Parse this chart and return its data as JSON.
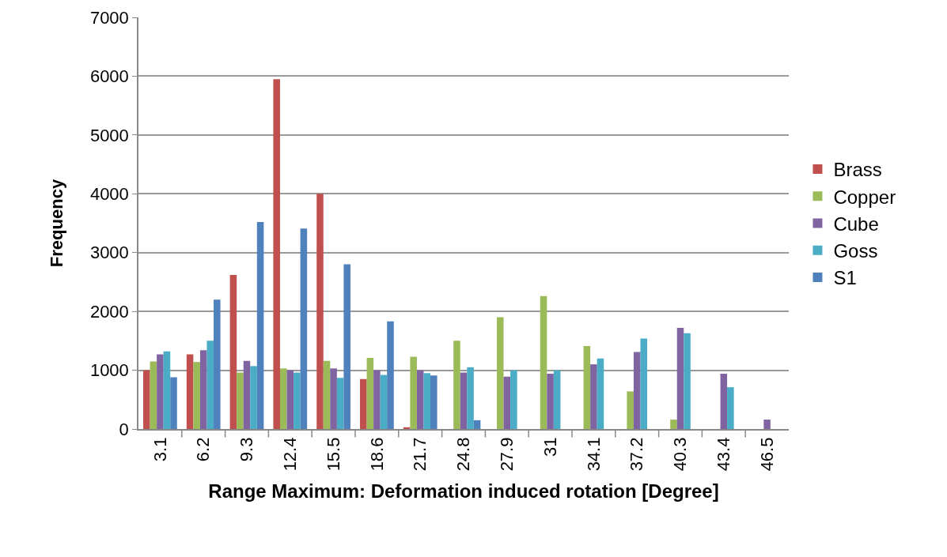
{
  "chart_data": {
    "type": "bar",
    "xlabel": "Range Maximum: Deformation induced rotation [Degree]",
    "ylabel": "Frequency",
    "categories": [
      "3.1",
      "6.2",
      "9.3",
      "12.4",
      "15.5",
      "18.6",
      "21.7",
      "24.8",
      "27.9",
      "31",
      "34.1",
      "37.2",
      "40.3",
      "43.4",
      "46.5"
    ],
    "series": [
      {
        "name": "Brass",
        "color": "#c0504d",
        "values": [
          1000,
          1270,
          2620,
          5950,
          4000,
          850,
          30,
          null,
          null,
          null,
          null,
          null,
          null,
          null,
          null
        ]
      },
      {
        "name": "Copper",
        "color": "#9bbb59",
        "values": [
          1150,
          1140,
          960,
          1030,
          1160,
          1210,
          1230,
          1500,
          1900,
          2260,
          1410,
          640,
          160,
          null,
          null
        ]
      },
      {
        "name": "Cube",
        "color": "#8064a2",
        "values": [
          1270,
          1340,
          1160,
          1000,
          1030,
          1000,
          1000,
          960,
          890,
          940,
          1100,
          1310,
          1720,
          940,
          160
        ]
      },
      {
        "name": "Goss",
        "color": "#4bacc6",
        "values": [
          1320,
          1500,
          1070,
          960,
          870,
          920,
          950,
          1050,
          1000,
          1000,
          1200,
          1540,
          1630,
          710,
          null
        ]
      },
      {
        "name": "S1",
        "color": "#4f81bd",
        "values": [
          880,
          2200,
          3520,
          3410,
          2800,
          1830,
          910,
          150,
          null,
          null,
          null,
          null,
          null,
          null,
          null
        ]
      }
    ],
    "ylim": [
      0,
      7000
    ],
    "yticks": [
      0,
      1000,
      2000,
      3000,
      4000,
      5000,
      6000,
      7000
    ],
    "grid": "y",
    "legend": "right"
  }
}
